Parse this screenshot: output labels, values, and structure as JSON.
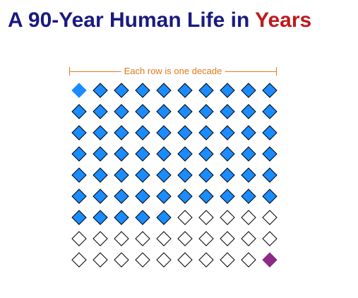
{
  "title": {
    "prefix": "A 90-Year Human Life in ",
    "accent": "Years"
  },
  "annotation": "Each row is one decade",
  "grid": {
    "rows": 9,
    "columns": 10,
    "total_years": 90,
    "lived_years": 65,
    "current_year_index": 0,
    "highlight_year_index": 89
  },
  "colors": {
    "title": "#1a1a80",
    "title_accent": "#c0191c",
    "annotation": "#e07a1c",
    "lived_fill": "#1a8cff",
    "current_fill": "#1a8cff",
    "remaining_fill": "#ffffff",
    "highlight_fill": "#8b2b87",
    "outline": "#000000"
  }
}
